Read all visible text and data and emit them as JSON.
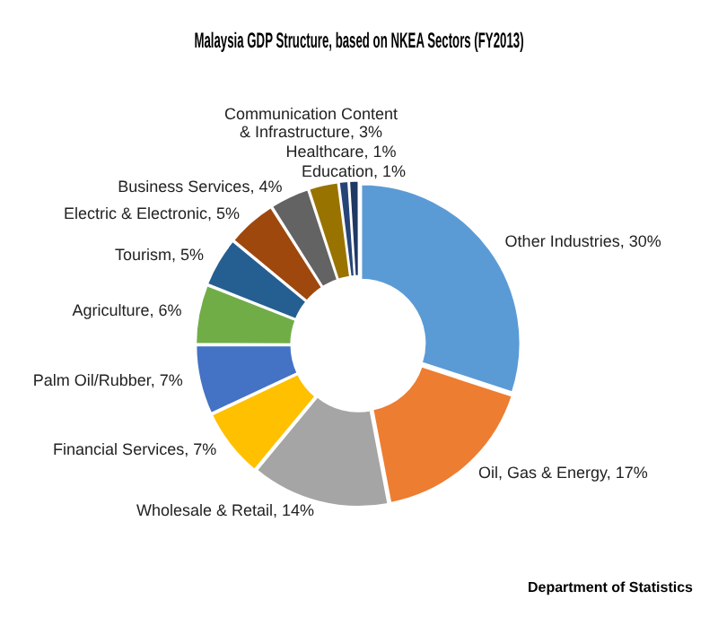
{
  "chart_data": {
    "type": "donut",
    "title": "Malaysia GDP Structure, based on NKEA Sectors (FY2013)",
    "categories": [
      "Other Industries",
      "Oil, Gas & Energy",
      "Wholesale & Retail",
      "Financial Services",
      "Palm Oil/Rubber",
      "Agriculture",
      "Tourism",
      "Electric & Electronic",
      "Business Services",
      "Communication Content & Infrastructure",
      "Healthcare",
      "Education"
    ],
    "values": [
      30,
      17,
      14,
      7,
      7,
      6,
      5,
      5,
      4,
      3,
      1,
      1
    ],
    "value_labels": [
      "30%",
      "17%",
      "14%",
      "7%",
      "7%",
      "6%",
      "5%",
      "5%",
      "4%",
      "3%",
      "1%",
      "1%"
    ],
    "colors": [
      "#5b9bd5",
      "#ed7d31",
      "#a5a5a5",
      "#ffc000",
      "#4472c4",
      "#70ad47",
      "#255e91",
      "#9e480e",
      "#636363",
      "#997300",
      "#264478",
      "#1f3864"
    ],
    "legend": false,
    "annotations": [
      "Department of Statistics"
    ]
  }
}
